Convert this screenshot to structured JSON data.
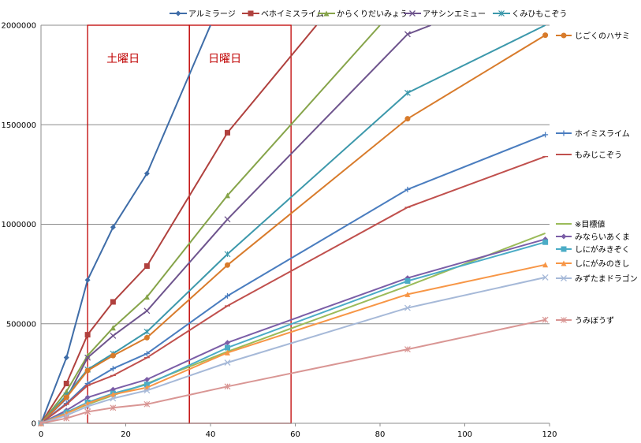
{
  "chart_data": {
    "type": "line",
    "title": "",
    "xlabel": "",
    "ylabel": "",
    "xlim": [
      0,
      120
    ],
    "ylim": [
      0,
      2000000
    ],
    "x_ticks": [
      "0",
      "20",
      "40",
      "60",
      "80",
      "100",
      "120"
    ],
    "y_ticks": [
      "0",
      "500000",
      "1000000",
      "1500000",
      "2000000"
    ],
    "grid": "horizontal",
    "legend_top": [
      {
        "name": "アルミラージ",
        "color": "#3f6da8",
        "marker": "diamond"
      },
      {
        "name": "ベホイミスライム",
        "color": "#b0413e",
        "marker": "square"
      },
      {
        "name": "からくりだいみょう",
        "color": "#86a44a",
        "marker": "triangle"
      },
      {
        "name": "アサシンエミュー",
        "color": "#6e548d",
        "marker": "x"
      },
      {
        "name": "くみひもこぞう",
        "color": "#3c98ab",
        "marker": "asterisk"
      }
    ],
    "annotations": [
      {
        "text": "土曜日",
        "x_from": 11,
        "x_to": 35,
        "color": "#c00000"
      },
      {
        "text": "日曜日",
        "x_from": 35,
        "x_to": 59,
        "color": "#c00000"
      }
    ],
    "series": [
      {
        "name": "アルミラージ",
        "color": "#3f6da8",
        "marker": "diamond",
        "label_pos": "none",
        "points": [
          [
            0,
            0
          ],
          [
            6,
            330000
          ],
          [
            11,
            720000
          ],
          [
            17,
            985000
          ],
          [
            25,
            1255000
          ],
          [
            40,
            2000000
          ]
        ]
      },
      {
        "name": "ベホイミスライム",
        "color": "#b0413e",
        "marker": "square",
        "label_pos": "none",
        "points": [
          [
            0,
            0
          ],
          [
            6,
            200000
          ],
          [
            11,
            445000
          ],
          [
            17,
            610000
          ],
          [
            25,
            790000
          ],
          [
            44,
            1460000
          ],
          [
            65,
            2000000
          ]
        ]
      },
      {
        "name": "からくりだいみょう",
        "color": "#86a44a",
        "marker": "triangle",
        "label_pos": "none",
        "points": [
          [
            0,
            0
          ],
          [
            6,
            160000
          ],
          [
            11,
            340000
          ],
          [
            17,
            480000
          ],
          [
            25,
            635000
          ],
          [
            44,
            1145000
          ],
          [
            80,
            2000000
          ]
        ]
      },
      {
        "name": "アサシンエミュー",
        "color": "#6e548d",
        "marker": "x",
        "label_pos": "none",
        "points": [
          [
            0,
            0
          ],
          [
            6,
            125000
          ],
          [
            11,
            330000
          ],
          [
            17,
            440000
          ],
          [
            25,
            565000
          ],
          [
            44,
            1025000
          ],
          [
            86.5,
            1955000
          ],
          [
            92,
            2000000
          ]
        ]
      },
      {
        "name": "くみひもこぞう",
        "color": "#3c98ab",
        "marker": "asterisk",
        "label_pos": "none",
        "points": [
          [
            0,
            0
          ],
          [
            6,
            140000
          ],
          [
            11,
            270000
          ],
          [
            17,
            350000
          ],
          [
            25,
            460000
          ],
          [
            44,
            850000
          ],
          [
            86.5,
            1660000
          ],
          [
            119,
            2000000
          ]
        ]
      },
      {
        "name": "じごくのハサミ",
        "color": "#d87b2b",
        "marker": "circle",
        "label_pos": "right",
        "points": [
          [
            0,
            0
          ],
          [
            6,
            130000
          ],
          [
            11,
            265000
          ],
          [
            17,
            340000
          ],
          [
            25,
            430000
          ],
          [
            44,
            795000
          ],
          [
            86.5,
            1530000
          ],
          [
            119,
            1950000
          ]
        ]
      },
      {
        "name": "ホイミスライム",
        "color": "#4a7dbf",
        "marker": "plus",
        "label_pos": "right",
        "points": [
          [
            0,
            0
          ],
          [
            6,
            100000
          ],
          [
            11,
            200000
          ],
          [
            17,
            275000
          ],
          [
            25,
            350000
          ],
          [
            44,
            640000
          ],
          [
            86.5,
            1175000
          ],
          [
            119,
            1450000
          ]
        ]
      },
      {
        "name": "もみじこぞう",
        "color": "#c0504d",
        "marker": "dash",
        "label_pos": "right",
        "points": [
          [
            0,
            0
          ],
          [
            6,
            95000
          ],
          [
            11,
            190000
          ],
          [
            17,
            240000
          ],
          [
            25,
            330000
          ],
          [
            44,
            590000
          ],
          [
            86.5,
            1085000
          ],
          [
            119,
            1340000
          ]
        ]
      },
      {
        "name": "※目標値",
        "color": "#9bbb59",
        "marker": "none",
        "label_pos": "right",
        "points": [
          [
            0,
            0
          ],
          [
            6,
            50000
          ],
          [
            11,
            95000
          ],
          [
            17,
            140000
          ],
          [
            25,
            200000
          ],
          [
            44,
            360000
          ],
          [
            86.5,
            690000
          ],
          [
            119,
            955000
          ]
        ]
      },
      {
        "name": "みならいあくま",
        "color": "#7b5ea7",
        "marker": "diamond",
        "label_pos": "right",
        "points": [
          [
            0,
            0
          ],
          [
            6,
            65000
          ],
          [
            11,
            130000
          ],
          [
            17,
            170000
          ],
          [
            25,
            220000
          ],
          [
            44,
            405000
          ],
          [
            86.5,
            730000
          ],
          [
            119,
            925000
          ]
        ]
      },
      {
        "name": "しにがみきぞく",
        "color": "#4bacc6",
        "marker": "square",
        "label_pos": "right",
        "points": [
          [
            0,
            0
          ],
          [
            6,
            55000
          ],
          [
            11,
            105000
          ],
          [
            17,
            150000
          ],
          [
            25,
            195000
          ],
          [
            44,
            380000
          ],
          [
            86.5,
            715000
          ],
          [
            119,
            910000
          ]
        ]
      },
      {
        "name": "しにがみのきし",
        "color": "#f79646",
        "marker": "triangle",
        "label_pos": "right",
        "points": [
          [
            0,
            0
          ],
          [
            6,
            50000
          ],
          [
            11,
            100000
          ],
          [
            17,
            145000
          ],
          [
            25,
            180000
          ],
          [
            44,
            355000
          ],
          [
            86.5,
            648000
          ],
          [
            119,
            797000
          ]
        ]
      },
      {
        "name": "みずたまドラゴン",
        "color": "#a6b9d8",
        "marker": "x",
        "label_pos": "right",
        "points": [
          [
            0,
            0
          ],
          [
            6,
            40000
          ],
          [
            11,
            85000
          ],
          [
            17,
            125000
          ],
          [
            25,
            165000
          ],
          [
            44,
            305000
          ],
          [
            86.5,
            580000
          ],
          [
            119,
            733000
          ]
        ]
      },
      {
        "name": "うみぼうず",
        "color": "#d99694",
        "marker": "asterisk",
        "label_pos": "right",
        "points": [
          [
            0,
            0
          ],
          [
            6,
            25000
          ],
          [
            11,
            58000
          ],
          [
            17,
            78000
          ],
          [
            25,
            96000
          ],
          [
            44,
            185000
          ],
          [
            86.5,
            372000
          ],
          [
            119,
            520000
          ]
        ]
      }
    ]
  }
}
